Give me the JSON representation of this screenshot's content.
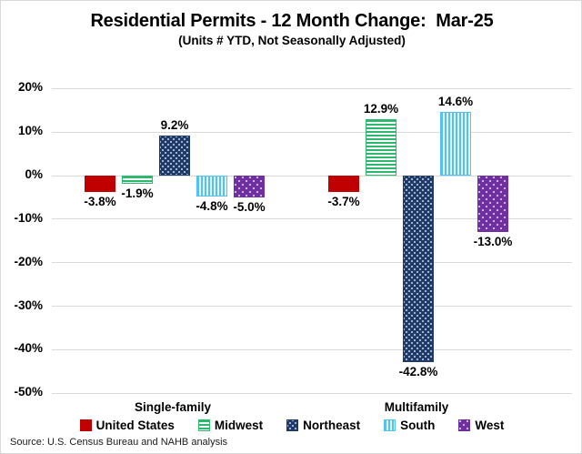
{
  "title": "Residential Permits - 12 Month Change:  Mar-25",
  "subtitle": "(Units # YTD, Not Seasonally Adjusted)",
  "source": "Source: U.S. Census Bureau and NAHB analysis",
  "colors": {
    "united_states": "#c00000",
    "midwest": "#2eb86d",
    "northeast": "#1f3864",
    "south": "#55c1f2",
    "west": "#7030a0",
    "gridline": "#d9d9d9",
    "text": "#000000"
  },
  "chart_data": {
    "type": "bar",
    "categories": [
      "Single-family",
      "Multifamily"
    ],
    "series": [
      {
        "name": "United States",
        "pattern": "solid",
        "color": "#c00000",
        "values": [
          -3.8,
          -3.7
        ],
        "labels": [
          "-3.8%",
          "-3.7%"
        ]
      },
      {
        "name": "Midwest",
        "pattern": "hstripe",
        "color": "#2eb86d",
        "values": [
          -1.9,
          12.9
        ],
        "labels": [
          "-1.9%",
          "12.9%"
        ]
      },
      {
        "name": "Northeast",
        "pattern": "dotgrid",
        "color": "#1f3864",
        "values": [
          9.2,
          -42.8
        ],
        "labels": [
          "9.2%",
          "-42.8%"
        ]
      },
      {
        "name": "South",
        "pattern": "vstripe",
        "color": "#55c1f2",
        "values": [
          -4.8,
          14.6
        ],
        "labels": [
          "-4.8%",
          "14.6%"
        ]
      },
      {
        "name": "West",
        "pattern": "dots",
        "color": "#7030a0",
        "values": [
          -5.0,
          -13.0
        ],
        "labels": [
          "-5.0%",
          "-13.0%"
        ]
      }
    ],
    "y_ticks": [
      "20%",
      "10%",
      "0%",
      "-10%",
      "-20%",
      "-30%",
      "-40%",
      "-50%"
    ],
    "ylim": [
      -50,
      20
    ],
    "ylabel": "",
    "xlabel": "",
    "grid": true,
    "legend_position": "bottom"
  }
}
